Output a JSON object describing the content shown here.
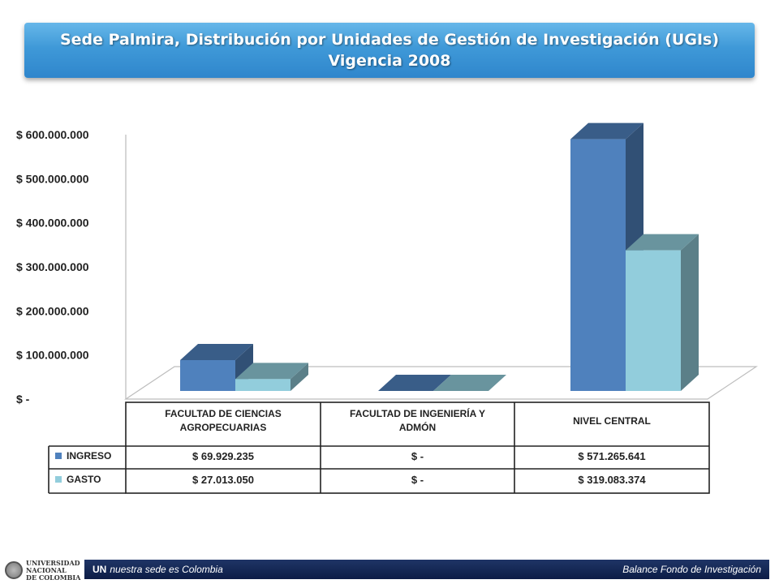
{
  "header": {
    "title_line1": "Sede Palmira, Distribución por Unidades de Gestión de Investigación (UGIs)",
    "title_line2": "Vigencia 2008"
  },
  "chart_data": {
    "type": "bar",
    "variant": "3d-clustered-with-data-table",
    "categories": [
      [
        "FACULTAD DE CIENCIAS",
        "AGROPECUARIAS"
      ],
      [
        "FACULTAD DE INGENIERÍA Y",
        "ADMÓN"
      ],
      [
        "NIVEL CENTRAL"
      ]
    ],
    "series": [
      {
        "name": "INGRESO",
        "values": [
          69929235,
          0,
          571265641
        ],
        "color": "#4f81bd",
        "labels": [
          "$ 69.929.235",
          "$ -",
          "$ 571.265.641"
        ]
      },
      {
        "name": "GASTO",
        "values": [
          27013050,
          0,
          319083374
        ],
        "color": "#92cddc",
        "labels": [
          "$ 27.013.050",
          "$ -",
          "$ 319.083.374"
        ]
      }
    ],
    "yticks": [
      "$ -",
      "$ 100.000.000",
      "$ 200.000.000",
      "$ 300.000.000",
      "$ 400.000.000",
      "$ 500.000.000",
      "$ 600.000.000"
    ],
    "ylim": [
      0,
      600000000
    ],
    "grid": false,
    "legend": "in-table"
  },
  "footer": {
    "logo_lines": [
      "UNIVERSIDAD",
      "NACIONAL",
      "DE COLOMBIA"
    ],
    "brand": "UN",
    "slogan": "nuestra sede es Colombia",
    "right_text": "Balance Fondo de Investigación"
  }
}
